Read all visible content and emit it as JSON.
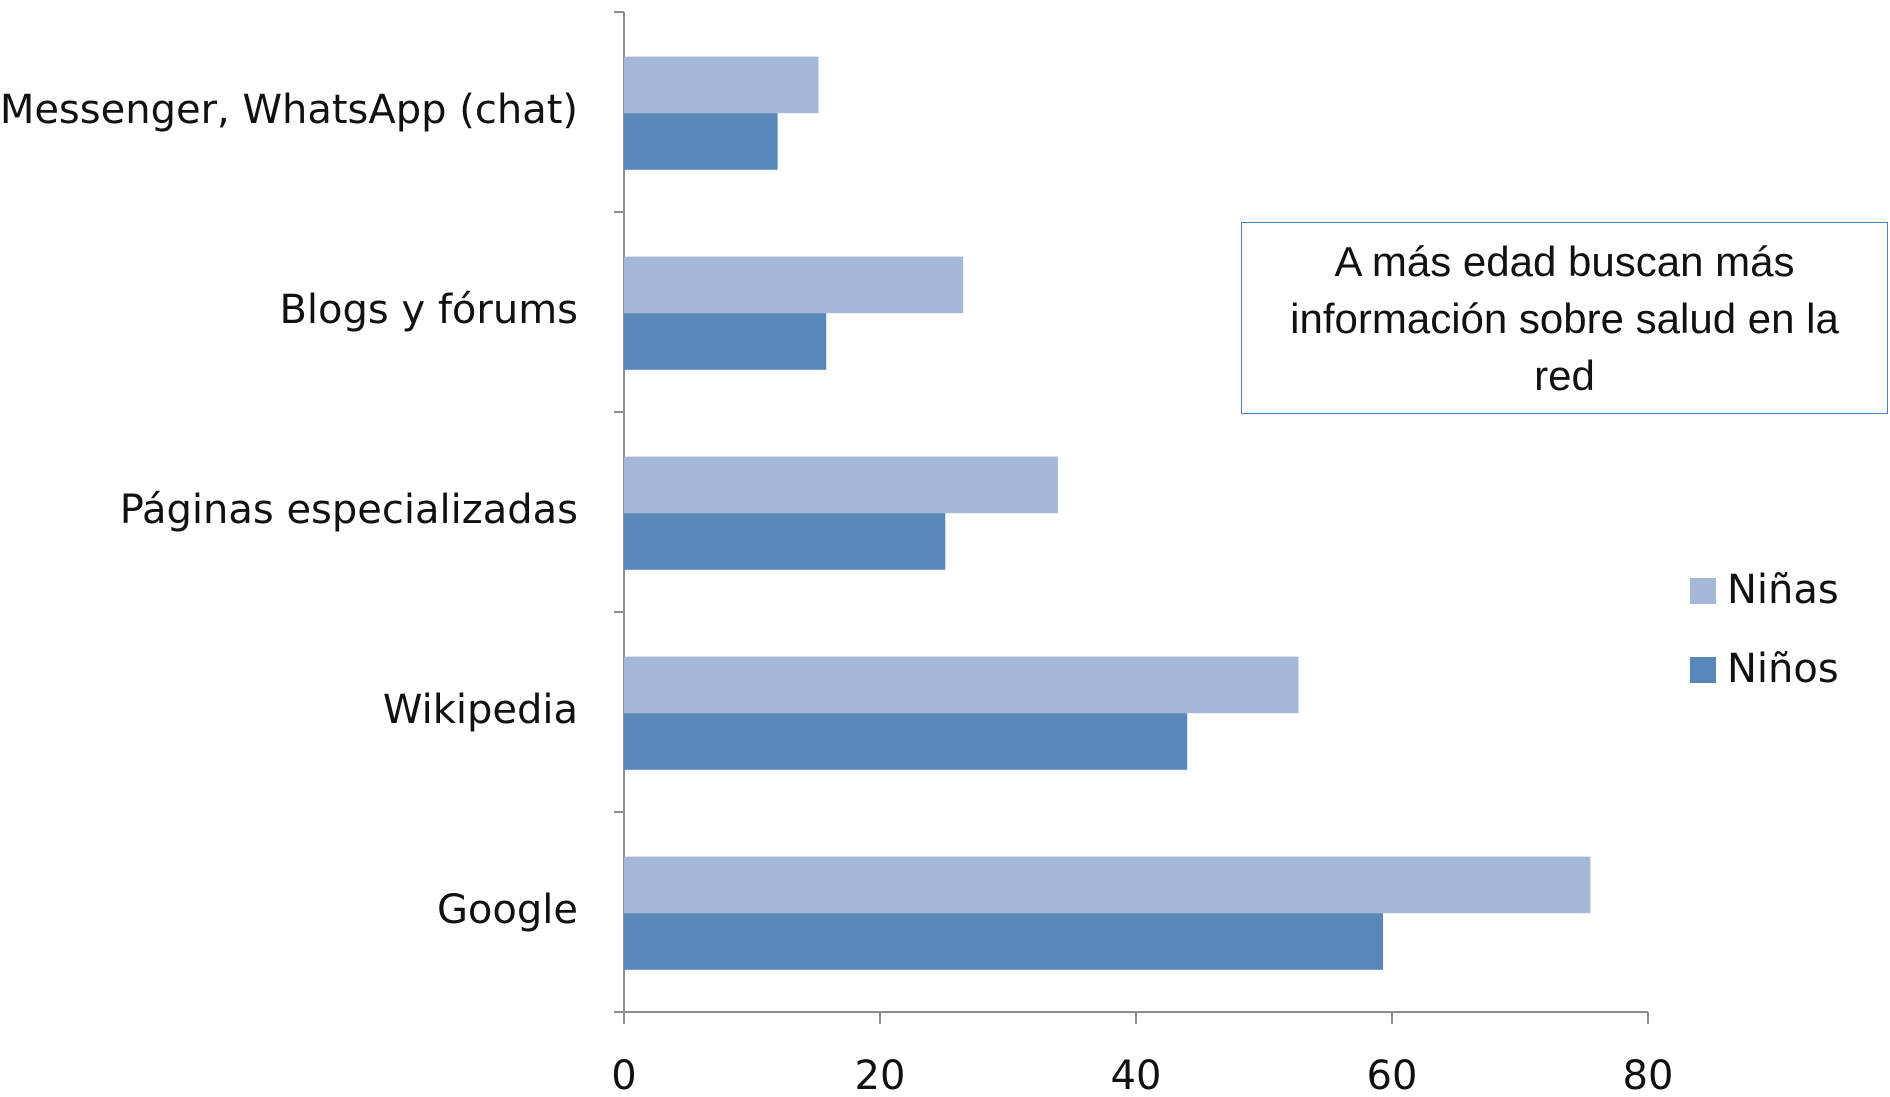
{
  "chart_data": {
    "type": "bar",
    "orientation": "horizontal",
    "categories": [
      "Messenger, WhatsApp (chat)",
      "Blogs y fórums",
      "Páginas especializadas",
      "Wikipedia",
      "Google"
    ],
    "series": [
      {
        "name": "Niñas",
        "color": "#a5b8d8",
        "values": [
          15.2,
          26.5,
          33.9,
          52.7,
          75.5
        ]
      },
      {
        "name": "Niños",
        "color": "#5887b9",
        "values": [
          12.0,
          15.8,
          25.1,
          44.0,
          59.3
        ]
      }
    ],
    "xlim": [
      0,
      80
    ],
    "xticks": [
      0,
      20,
      40,
      60,
      80
    ],
    "grid": false,
    "legend": "right",
    "annotation": "A más edad buscan más información sobre salud en la red"
  }
}
